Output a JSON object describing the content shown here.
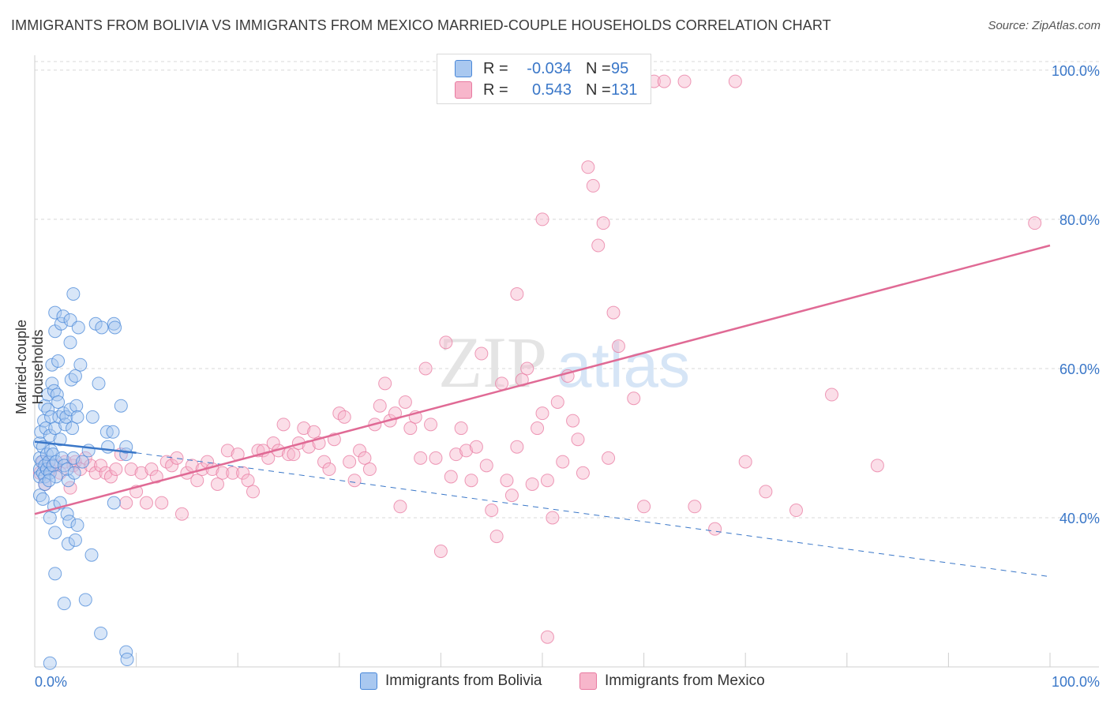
{
  "header": {
    "title": "IMMIGRANTS FROM BOLIVIA VS IMMIGRANTS FROM MEXICO MARRIED-COUPLE HOUSEHOLDS CORRELATION CHART",
    "source": "Source: ZipAtlas.com"
  },
  "watermark": {
    "zip": "ZIP",
    "atlas": "atlas"
  },
  "legend": {
    "rows": [
      {
        "r_label": "R =",
        "r_value": "-0.034",
        "n_label": "N =",
        "n_value": "95",
        "color": "#a9c8f0"
      },
      {
        "r_label": "R =",
        "r_value": "0.543",
        "n_label": "N =",
        "n_value": "131",
        "color": "#f7b6cb"
      }
    ]
  },
  "bottom_legend": [
    {
      "label": "Immigrants from Bolivia",
      "color": "#a9c8f0"
    },
    {
      "label": "Immigrants from Mexico",
      "color": "#f7b6cb"
    }
  ],
  "colors": {
    "bolivia_stroke": "#4a88d8",
    "bolivia_fill": "#a9c8f0",
    "mexico_stroke": "#e87aa0",
    "mexico_fill": "#f7b6cb",
    "bolivia_trend": "#3a77c8",
    "mexico_trend": "#e06a95",
    "grid": "#d8d8d8",
    "tick_text": "#3a77c8"
  },
  "chart_data": {
    "type": "scatter",
    "title": "IMMIGRANTS FROM BOLIVIA VS IMMIGRANTS FROM MEXICO MARRIED-COUPLE HOUSEHOLDS CORRELATION CHART",
    "xlabel": "",
    "ylabel": "Married-couple Households",
    "xlim": [
      0,
      100
    ],
    "ylim": [
      20,
      102
    ],
    "x_tick_labels": [
      "0.0%",
      "100.0%"
    ],
    "y_ticks": [
      40,
      60,
      80,
      100
    ],
    "y_tick_labels": [
      "40.0%",
      "60.0%",
      "80.0%",
      "100.0%"
    ],
    "grid": true,
    "legend_position": "top-center",
    "series": [
      {
        "name": "Immigrants from Bolivia",
        "r": -0.034,
        "n": 95,
        "trend": {
          "x": [
            0,
            10
          ],
          "y": [
            50.2,
            48.7
          ],
          "dashed_extension": {
            "x": [
              10,
              100
            ],
            "y": [
              48.7,
              32.1
            ]
          }
        },
        "points": [
          [
            0.5,
            46.5
          ],
          [
            0.5,
            48.0
          ],
          [
            0.5,
            45.5
          ],
          [
            0.5,
            43.0
          ],
          [
            0.5,
            50.0
          ],
          [
            0.6,
            51.5
          ],
          [
            0.7,
            47.5
          ],
          [
            0.8,
            46.0
          ],
          [
            0.8,
            49.5
          ],
          [
            0.9,
            53.0
          ],
          [
            1.0,
            55.0
          ],
          [
            1.0,
            47.0
          ],
          [
            1.0,
            45.5
          ],
          [
            1.1,
            52.0
          ],
          [
            1.2,
            48.5
          ],
          [
            1.2,
            46.5
          ],
          [
            1.3,
            54.5
          ],
          [
            1.3,
            56.5
          ],
          [
            1.4,
            47.5
          ],
          [
            1.5,
            51.0
          ],
          [
            1.5,
            40.0
          ],
          [
            1.5,
            46.0
          ],
          [
            1.6,
            53.5
          ],
          [
            1.6,
            49.0
          ],
          [
            1.7,
            60.5
          ],
          [
            1.7,
            58.0
          ],
          [
            1.8,
            48.5
          ],
          [
            1.8,
            47.0
          ],
          [
            1.9,
            57.0
          ],
          [
            1.9,
            41.5
          ],
          [
            2.0,
            65.0
          ],
          [
            2.0,
            67.5
          ],
          [
            2.0,
            52.0
          ],
          [
            2.0,
            38.0
          ],
          [
            2.0,
            32.5
          ],
          [
            2.1,
            47.5
          ],
          [
            2.1,
            45.5
          ],
          [
            2.2,
            56.5
          ],
          [
            2.3,
            61.0
          ],
          [
            2.3,
            55.5
          ],
          [
            2.4,
            53.5
          ],
          [
            2.5,
            50.5
          ],
          [
            2.5,
            42.0
          ],
          [
            2.6,
            66.0
          ],
          [
            2.7,
            48.0
          ],
          [
            2.8,
            67.0
          ],
          [
            2.8,
            54.0
          ],
          [
            2.9,
            28.5
          ],
          [
            2.9,
            47.0
          ],
          [
            3.0,
            52.5
          ],
          [
            3.1,
            53.5
          ],
          [
            3.2,
            46.5
          ],
          [
            3.2,
            40.5
          ],
          [
            3.3,
            45.0
          ],
          [
            3.3,
            36.5
          ],
          [
            3.4,
            39.5
          ],
          [
            3.5,
            66.5
          ],
          [
            3.5,
            63.5
          ],
          [
            3.5,
            54.5
          ],
          [
            3.6,
            58.5
          ],
          [
            3.7,
            52.0
          ],
          [
            3.8,
            70.0
          ],
          [
            3.8,
            48.0
          ],
          [
            3.9,
            46.0
          ],
          [
            4.0,
            59.0
          ],
          [
            4.0,
            37.0
          ],
          [
            4.1,
            55.0
          ],
          [
            4.2,
            39.0
          ],
          [
            4.2,
            53.5
          ],
          [
            4.3,
            65.5
          ],
          [
            4.5,
            60.5
          ],
          [
            4.7,
            47.5
          ],
          [
            5.0,
            29.0
          ],
          [
            5.3,
            49.0
          ],
          [
            5.6,
            35.0
          ],
          [
            5.7,
            53.5
          ],
          [
            6.0,
            66.0
          ],
          [
            6.3,
            58.0
          ],
          [
            6.5,
            24.5
          ],
          [
            7.1,
            51.5
          ],
          [
            7.2,
            49.5
          ],
          [
            7.7,
            51.5
          ],
          [
            7.8,
            42.0
          ],
          [
            6.6,
            65.5
          ],
          [
            7.8,
            66.0
          ],
          [
            7.9,
            65.5
          ],
          [
            8.5,
            55.0
          ],
          [
            9.0,
            22.0
          ],
          [
            9.0,
            48.5
          ],
          [
            9.0,
            49.5
          ],
          [
            9.1,
            21.0
          ],
          [
            1.5,
            20.5
          ],
          [
            1.0,
            44.5
          ],
          [
            0.8,
            42.5
          ],
          [
            1.4,
            45.0
          ]
        ]
      },
      {
        "name": "Immigrants from Mexico",
        "r": 0.543,
        "n": 131,
        "trend": {
          "x": [
            0,
            100
          ],
          "y": [
            40.5,
            76.5
          ]
        },
        "points": [
          [
            0.5,
            46.0
          ],
          [
            0.8,
            47.5
          ],
          [
            1.0,
            44.5
          ],
          [
            1.5,
            46.5
          ],
          [
            2.0,
            47.0
          ],
          [
            2.5,
            46.0
          ],
          [
            3.0,
            47.5
          ],
          [
            3.5,
            44.0
          ],
          [
            3.8,
            47.0
          ],
          [
            4.0,
            47.5
          ],
          [
            4.5,
            46.5
          ],
          [
            5.0,
            48.0
          ],
          [
            5.5,
            47.0
          ],
          [
            6.0,
            46.0
          ],
          [
            6.5,
            47.0
          ],
          [
            7.0,
            46.0
          ],
          [
            7.5,
            45.5
          ],
          [
            8.0,
            46.5
          ],
          [
            8.5,
            48.5
          ],
          [
            9.0,
            42.0
          ],
          [
            9.5,
            46.5
          ],
          [
            10.0,
            43.5
          ],
          [
            10.5,
            46.0
          ],
          [
            11.0,
            42.0
          ],
          [
            11.5,
            46.5
          ],
          [
            12.0,
            45.5
          ],
          [
            12.5,
            42.0
          ],
          [
            13.0,
            47.5
          ],
          [
            13.5,
            47.0
          ],
          [
            14.0,
            48.0
          ],
          [
            14.5,
            40.5
          ],
          [
            15.0,
            46.0
          ],
          [
            15.5,
            47.0
          ],
          [
            16.0,
            45.0
          ],
          [
            16.5,
            46.5
          ],
          [
            17.0,
            47.5
          ],
          [
            17.5,
            46.5
          ],
          [
            18.0,
            44.5
          ],
          [
            18.5,
            46.0
          ],
          [
            19.0,
            49.0
          ],
          [
            19.5,
            46.0
          ],
          [
            20.0,
            48.5
          ],
          [
            20.5,
            46.0
          ],
          [
            21.0,
            45.0
          ],
          [
            21.5,
            43.5
          ],
          [
            22.0,
            49.0
          ],
          [
            22.5,
            49.0
          ],
          [
            23.0,
            48.0
          ],
          [
            23.5,
            50.0
          ],
          [
            24.0,
            49.0
          ],
          [
            24.5,
            52.5
          ],
          [
            25.0,
            48.5
          ],
          [
            25.5,
            48.5
          ],
          [
            26.0,
            50.0
          ],
          [
            26.5,
            52.0
          ],
          [
            27.0,
            49.5
          ],
          [
            27.5,
            51.5
          ],
          [
            28.0,
            50.0
          ],
          [
            28.5,
            47.5
          ],
          [
            29.0,
            46.5
          ],
          [
            29.5,
            50.5
          ],
          [
            30.0,
            54.0
          ],
          [
            30.5,
            53.5
          ],
          [
            31.0,
            47.5
          ],
          [
            31.5,
            45.0
          ],
          [
            32.0,
            49.0
          ],
          [
            32.5,
            48.0
          ],
          [
            33.0,
            46.5
          ],
          [
            33.5,
            52.5
          ],
          [
            34.0,
            55.0
          ],
          [
            34.5,
            58.0
          ],
          [
            35.0,
            53.0
          ],
          [
            35.5,
            54.0
          ],
          [
            36.0,
            41.5
          ],
          [
            36.5,
            55.5
          ],
          [
            37.0,
            52.0
          ],
          [
            37.5,
            53.5
          ],
          [
            38.0,
            48.0
          ],
          [
            38.5,
            60.0
          ],
          [
            39.0,
            52.5
          ],
          [
            39.5,
            48.0
          ],
          [
            40.0,
            35.5
          ],
          [
            40.5,
            63.5
          ],
          [
            41.0,
            45.5
          ],
          [
            41.5,
            48.5
          ],
          [
            42.0,
            52.0
          ],
          [
            42.5,
            49.0
          ],
          [
            43.0,
            45.0
          ],
          [
            43.5,
            49.5
          ],
          [
            44.0,
            62.0
          ],
          [
            44.5,
            47.0
          ],
          [
            45.0,
            41.0
          ],
          [
            45.5,
            37.5
          ],
          [
            46.0,
            58.0
          ],
          [
            46.5,
            45.0
          ],
          [
            47.0,
            43.0
          ],
          [
            47.5,
            49.5
          ],
          [
            48.0,
            58.5
          ],
          [
            48.5,
            60.0
          ],
          [
            49.0,
            44.5
          ],
          [
            49.5,
            52.0
          ],
          [
            50.0,
            54.0
          ],
          [
            50.5,
            45.0
          ],
          [
            51.0,
            40.0
          ],
          [
            51.5,
            55.5
          ],
          [
            52.0,
            47.5
          ],
          [
            52.5,
            59.0
          ],
          [
            53.0,
            53.0
          ],
          [
            53.5,
            50.5
          ],
          [
            54.0,
            46.0
          ],
          [
            54.5,
            87.0
          ],
          [
            55.0,
            84.5
          ],
          [
            55.5,
            76.5
          ],
          [
            56.0,
            79.5
          ],
          [
            56.5,
            48.0
          ],
          [
            57.0,
            67.5
          ],
          [
            57.5,
            63.0
          ],
          [
            50.0,
            80.0
          ],
          [
            49.0,
            98.5
          ],
          [
            59.0,
            56.0
          ],
          [
            60.0,
            41.5
          ],
          [
            61.0,
            98.5
          ],
          [
            62.0,
            98.5
          ],
          [
            64.0,
            98.5
          ],
          [
            65.0,
            41.5
          ],
          [
            67.0,
            38.5
          ],
          [
            69.0,
            98.5
          ],
          [
            70.0,
            47.5
          ],
          [
            72.0,
            43.5
          ],
          [
            75.0,
            41.0
          ],
          [
            78.5,
            56.5
          ],
          [
            83.0,
            47.0
          ],
          [
            98.5,
            79.5
          ],
          [
            47.5,
            70.0
          ],
          [
            50.5,
            24.0
          ]
        ]
      }
    ]
  }
}
